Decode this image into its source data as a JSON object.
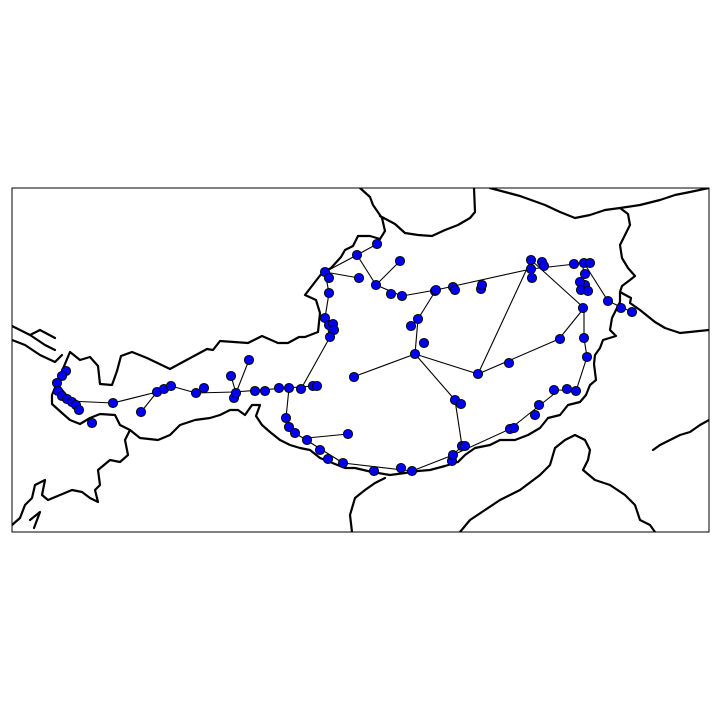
{
  "map": {
    "node_color": "#0000ee",
    "edge_color": "#000000",
    "border_color": "#000000",
    "background": "#ffffff",
    "nodes": [
      [
        1,
        66,
        371
      ],
      [
        2,
        62,
        376
      ],
      [
        3,
        57,
        383
      ],
      [
        4,
        58,
        391
      ],
      [
        5,
        62,
        396
      ],
      [
        6,
        67,
        399
      ],
      [
        7,
        72,
        402
      ],
      [
        8,
        76,
        405
      ],
      [
        9,
        79,
        410
      ],
      [
        10,
        92,
        423
      ],
      [
        11,
        113,
        403
      ],
      [
        12,
        141,
        412
      ],
      [
        13,
        157,
        392
      ],
      [
        14,
        164,
        389
      ],
      [
        15,
        171,
        386
      ],
      [
        16,
        196,
        393
      ],
      [
        17,
        204,
        388
      ],
      [
        18,
        231,
        376
      ],
      [
        19,
        234,
        398
      ],
      [
        20,
        236,
        393
      ],
      [
        21,
        249,
        360
      ],
      [
        22,
        255,
        391
      ],
      [
        23,
        265,
        391
      ],
      [
        24,
        279,
        388
      ],
      [
        25,
        289,
        388
      ],
      [
        26,
        301,
        389
      ],
      [
        27,
        313,
        386
      ],
      [
        28,
        317,
        386
      ],
      [
        29,
        354,
        377
      ],
      [
        30,
        286,
        418
      ],
      [
        31,
        289,
        427
      ],
      [
        32,
        295,
        433
      ],
      [
        33,
        307,
        440
      ],
      [
        34,
        320,
        450
      ],
      [
        35,
        328,
        459
      ],
      [
        36,
        343,
        463
      ],
      [
        37,
        348,
        434
      ],
      [
        38,
        374,
        471
      ],
      [
        39,
        401,
        468
      ],
      [
        40,
        412,
        471
      ],
      [
        41,
        452,
        461
      ],
      [
        42,
        453,
        455
      ],
      [
        43,
        462,
        446
      ],
      [
        44,
        465,
        446
      ],
      [
        45,
        455,
        400
      ],
      [
        46,
        461,
        404
      ],
      [
        47,
        478,
        374
      ],
      [
        48,
        510,
        429
      ],
      [
        49,
        514,
        428
      ],
      [
        50,
        535,
        415
      ],
      [
        51,
        539,
        405
      ],
      [
        52,
        554,
        390
      ],
      [
        53,
        567,
        389
      ],
      [
        54,
        576,
        391
      ],
      [
        55,
        587,
        357
      ],
      [
        56,
        584,
        338
      ],
      [
        57,
        560,
        339
      ],
      [
        58,
        509,
        363
      ],
      [
        59,
        415,
        354
      ],
      [
        60,
        424,
        343
      ],
      [
        61,
        411,
        326
      ],
      [
        62,
        418,
        319
      ],
      [
        63,
        435,
        291
      ],
      [
        64,
        436,
        290
      ],
      [
        65,
        453,
        287
      ],
      [
        66,
        455,
        290
      ],
      [
        67,
        481,
        289
      ],
      [
        68,
        482,
        285
      ],
      [
        69,
        531,
        260
      ],
      [
        70,
        531,
        269
      ],
      [
        71,
        532,
        278
      ],
      [
        72,
        542,
        262
      ],
      [
        73,
        544,
        266
      ],
      [
        74,
        574,
        264
      ],
      [
        75,
        584,
        263
      ],
      [
        76,
        590,
        263
      ],
      [
        77,
        585,
        274
      ],
      [
        78,
        585,
        285
      ],
      [
        79,
        580,
        282
      ],
      [
        80,
        581,
        290
      ],
      [
        81,
        588,
        291
      ],
      [
        82,
        583,
        308
      ],
      [
        83,
        608,
        301
      ],
      [
        84,
        621,
        308
      ],
      [
        85,
        632,
        312
      ],
      [
        86,
        402,
        296
      ],
      [
        87,
        391,
        294
      ],
      [
        88,
        376,
        285
      ],
      [
        89,
        359,
        278
      ],
      [
        90,
        400,
        261
      ],
      [
        91,
        377,
        244
      ],
      [
        92,
        357,
        255
      ],
      [
        93,
        325,
        272
      ],
      [
        94,
        329,
        278
      ],
      [
        95,
        329,
        293
      ],
      [
        96,
        325,
        318
      ],
      [
        97,
        329,
        325
      ],
      [
        98,
        333,
        324
      ],
      [
        99,
        334,
        330
      ],
      [
        100,
        330,
        337
      ]
    ],
    "edges": [
      [
        66,
        371,
        57,
        383
      ],
      [
        57,
        383,
        79,
        410
      ],
      [
        68,
        401,
        113,
        403
      ],
      [
        113,
        403,
        157,
        392
      ],
      [
        141,
        412,
        157,
        392
      ],
      [
        157,
        392,
        171,
        386
      ],
      [
        171,
        386,
        196,
        393
      ],
      [
        196,
        393,
        234,
        392
      ],
      [
        234,
        392,
        313,
        386
      ],
      [
        231,
        376,
        236,
        393
      ],
      [
        236,
        393,
        249,
        360
      ],
      [
        289,
        388,
        286,
        418
      ],
      [
        286,
        418,
        295,
        433
      ],
      [
        295,
        433,
        343,
        463
      ],
      [
        307,
        438,
        348,
        434
      ],
      [
        343,
        463,
        412,
        471
      ],
      [
        412,
        471,
        453,
        455
      ],
      [
        453,
        455,
        510,
        429
      ],
      [
        510,
        429,
        559,
        390
      ],
      [
        559,
        390,
        576,
        391
      ],
      [
        576,
        391,
        587,
        357
      ],
      [
        587,
        357,
        584,
        338
      ],
      [
        584,
        338,
        584,
        308
      ],
      [
        584,
        308,
        531,
        260
      ],
      [
        531,
        260,
        478,
        374
      ],
      [
        353,
        377,
        415,
        354
      ],
      [
        415,
        354,
        478,
        374
      ],
      [
        478,
        374,
        559,
        339
      ],
      [
        559,
        339,
        584,
        308
      ],
      [
        415,
        354,
        455,
        400
      ],
      [
        455,
        400,
        462,
        446
      ],
      [
        462,
        446,
        453,
        455
      ],
      [
        415,
        354,
        418,
        319
      ],
      [
        418,
        319,
        436,
        290
      ],
      [
        436,
        290,
        402,
        296
      ],
      [
        402,
        296,
        376,
        285
      ],
      [
        376,
        285,
        357,
        255
      ],
      [
        357,
        255,
        325,
        272
      ],
      [
        325,
        272,
        329,
        293
      ],
      [
        329,
        293,
        325,
        318
      ],
      [
        325,
        318,
        330,
        337
      ],
      [
        330,
        337,
        301,
        389
      ],
      [
        359,
        278,
        325,
        272
      ],
      [
        376,
        285,
        400,
        261
      ],
      [
        357,
        255,
        377,
        244
      ],
      [
        436,
        290,
        531,
        269
      ],
      [
        531,
        269,
        584,
        263
      ],
      [
        584,
        263,
        608,
        301
      ],
      [
        608,
        301,
        632,
        312
      ],
      [
        584,
        263,
        580,
        290
      ]
    ]
  }
}
